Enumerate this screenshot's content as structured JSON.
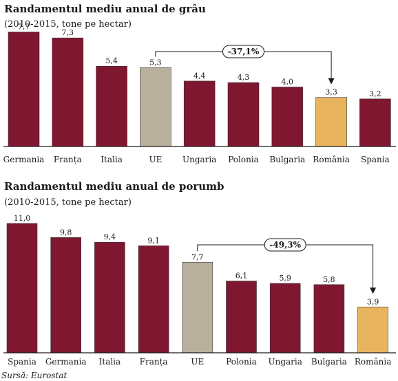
{
  "colors": {
    "default_bar": "#7f1730",
    "eu_bar": "#b8b09c",
    "romania_bar": "#e8b55e",
    "axis": "#1a1a1a"
  },
  "source": "Sursă: Eurostat",
  "chart_data": [
    {
      "type": "bar",
      "title": "Randamentul mediu anual de grâu",
      "subtitle": "(2010-2015, tone pe hectar)",
      "categories": [
        "Germania",
        "Franța",
        "Italia",
        "UE",
        "Ungaria",
        "Polonia",
        "Bulgaria",
        "România",
        "Spania"
      ],
      "values": [
        7.7,
        7.3,
        5.4,
        5.3,
        4.4,
        4.3,
        4.0,
        3.3,
        3.2
      ],
      "value_labels": [
        "7,7",
        "7,3",
        "5,4",
        "5,3",
        "4,4",
        "4,3",
        "4,0",
        "3,3",
        "3,2"
      ],
      "highlight": {
        "UE": "eu_bar",
        "România": "romania_bar"
      },
      "annotation": {
        "label": "-37,1%",
        "from": "UE",
        "to": "România"
      },
      "ylim": [
        0,
        8.0
      ],
      "grid": false
    },
    {
      "type": "bar",
      "title": "Randamentul mediu anual de porumb",
      "subtitle": "(2010-2015, tone pe hectar)",
      "categories": [
        "Spania",
        "Germania",
        "Italia",
        "Franța",
        "UE",
        "Polonia",
        "Ungaria",
        "Bulgaria",
        "România"
      ],
      "values": [
        11.0,
        9.8,
        9.4,
        9.1,
        7.7,
        6.1,
        5.9,
        5.8,
        3.9
      ],
      "value_labels": [
        "11,0",
        "9,8",
        "9,4",
        "9,1",
        "7,7",
        "6,1",
        "5,9",
        "5,8",
        "3,9"
      ],
      "highlight": {
        "UE": "eu_bar",
        "România": "romania_bar"
      },
      "annotation": {
        "label": "-49,3%",
        "from": "UE",
        "to": "România"
      },
      "ylim": [
        0,
        11.4
      ],
      "grid": false
    }
  ]
}
